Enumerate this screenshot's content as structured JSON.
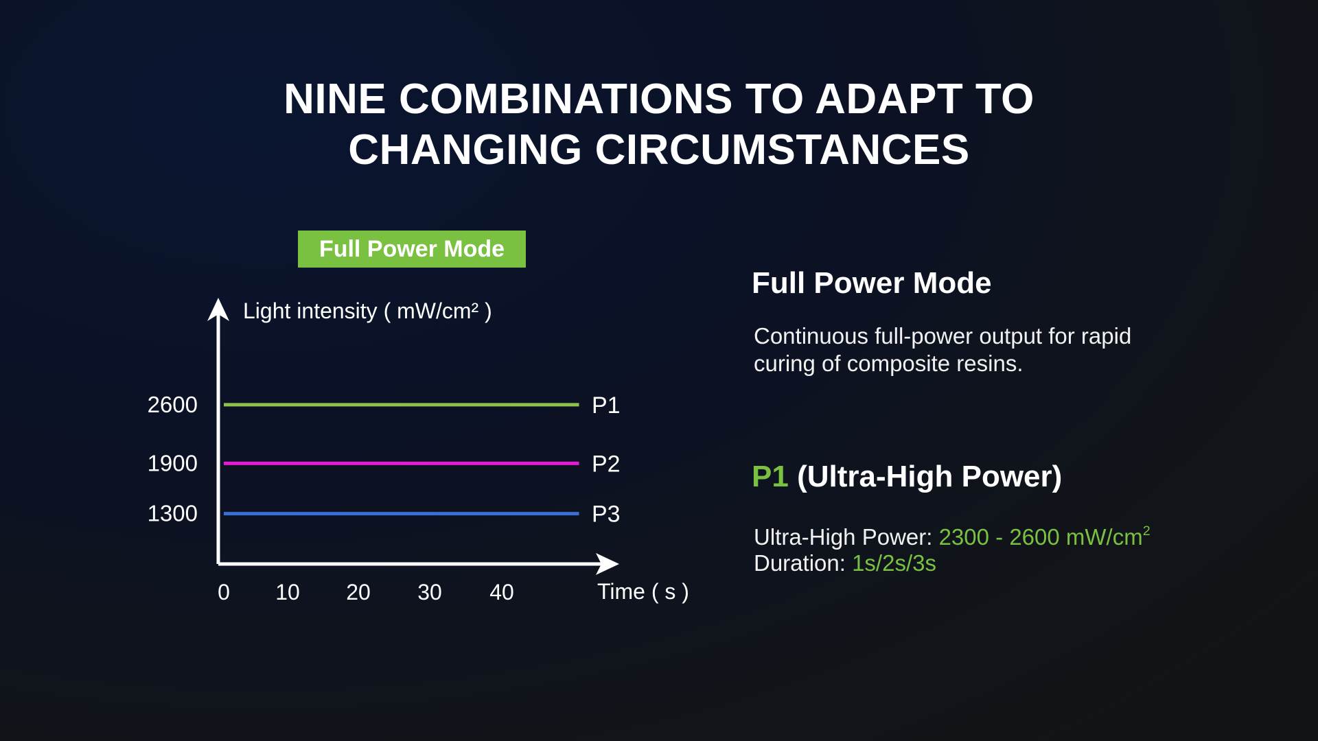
{
  "headline": {
    "line1": "NINE COMBINATIONS TO ADAPT TO",
    "line2": "CHANGING CIRCUMSTANCES"
  },
  "mode_badge": "Full Power Mode",
  "colors": {
    "accent": "#7ac142",
    "p1": "#8bc34a",
    "p2": "#e81ad6",
    "p3": "#3a6fd8",
    "axis": "#ffffff"
  },
  "chart_data": {
    "type": "line",
    "ylabel": "Light intensity ( mW/cm² )",
    "xlabel": "Time ( s )",
    "x_ticks": [
      0,
      10,
      20,
      30,
      40
    ],
    "y_ticks": [
      1300,
      1900,
      2600
    ],
    "xlim": [
      0,
      50
    ],
    "ylim": [
      700,
      3100
    ],
    "grid": false,
    "series": [
      {
        "name": "P1",
        "x": [
          0,
          50
        ],
        "values": [
          2600,
          2600
        ],
        "color": "#8bc34a"
      },
      {
        "name": "P2",
        "x": [
          0,
          50
        ],
        "values": [
          1900,
          1900
        ],
        "color": "#e81ad6"
      },
      {
        "name": "P3",
        "x": [
          0,
          50
        ],
        "values": [
          1300,
          1300
        ],
        "color": "#3a6fd8"
      }
    ]
  },
  "side": {
    "title": "Full Power Mode",
    "desc_line1": "Continuous full-power output for rapid",
    "desc_line2": "curing of composite resins.",
    "level_code": "P1",
    "level_name": "(Ultra-High Power)",
    "power_label": "Ultra-High Power: ",
    "power_value": "2300 - 2600 mW/cm",
    "power_sup": "2",
    "duration_label": "Duration: ",
    "duration_value": "1s/2s/3s"
  }
}
